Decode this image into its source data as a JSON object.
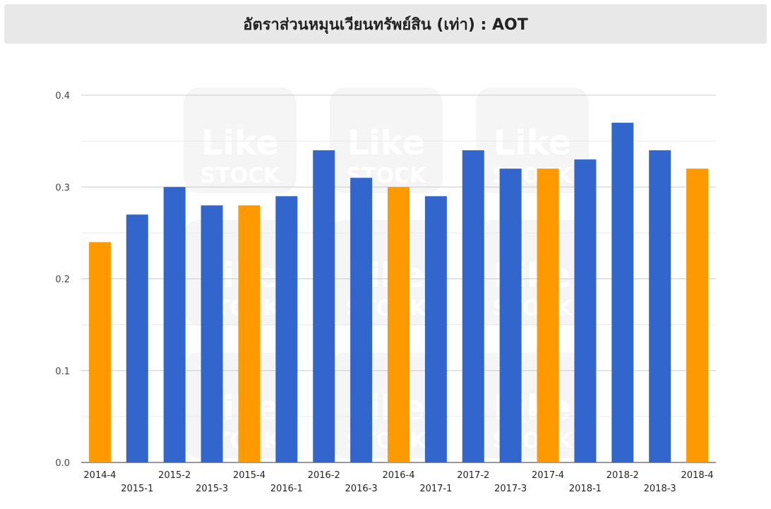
{
  "header": {
    "title": "อัตราส่วนหมุนเวียนทรัพย์สิน (เท่า) : AOT"
  },
  "watermark": {
    "line1": "Like",
    "line2": "STOCK"
  },
  "colors": {
    "quarter": "#3366cc",
    "year_end": "#ff9900",
    "grid": "#cccccc",
    "minor_grid": "#ebebeb",
    "axis_text": "#444444"
  },
  "chart_data": {
    "type": "bar",
    "title": "อัตราส่วนหมุนเวียนทรัพย์สิน (เท่า) : AOT",
    "categories": [
      "2014-4",
      "2015-1",
      "2015-2",
      "2015-3",
      "2015-4",
      "2016-1",
      "2016-2",
      "2016-3",
      "2016-4",
      "2017-1",
      "2017-2",
      "2017-3",
      "2017-4",
      "2018-1",
      "2018-2",
      "2018-3",
      "2018-4"
    ],
    "values": [
      0.24,
      0.27,
      0.3,
      0.28,
      0.28,
      0.29,
      0.34,
      0.31,
      0.3,
      0.29,
      0.34,
      0.32,
      0.32,
      0.33,
      0.37,
      0.34,
      0.32
    ],
    "ylim": [
      0,
      0.4
    ],
    "yticks": [
      "0.0",
      "0.1",
      "0.2",
      "0.3",
      "0.4"
    ],
    "grid": true,
    "legend": "none"
  }
}
